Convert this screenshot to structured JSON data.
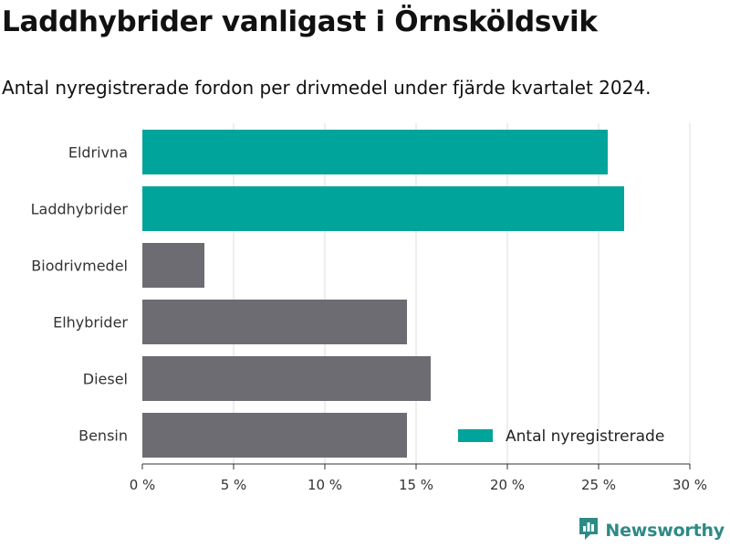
{
  "header": {
    "title": "Laddhybrider vanligast i Örnsköldsvik",
    "subtitle": "Antal nyregistrerade fordon per drivmedel under fjärde kvartalet 2024."
  },
  "colors": {
    "highlight": "#00a49a",
    "default": "#6d6c72",
    "legend": "#00a49a",
    "brand": "#2e8a86"
  },
  "chart_data": {
    "type": "bar",
    "orientation": "horizontal",
    "title": "Laddhybrider vanligast i Örnsköldsvik",
    "subtitle": "Antal nyregistrerade fordon per drivmedel under fjärde kvartalet 2024.",
    "categories": [
      "Eldrivna",
      "Laddhybrider",
      "Biodrivmedel",
      "Elhybrider",
      "Diesel",
      "Bensin"
    ],
    "values": [
      25.5,
      26.4,
      3.4,
      14.5,
      15.8,
      14.5
    ],
    "highlighted": [
      true,
      true,
      false,
      false,
      false,
      false
    ],
    "xlim": [
      0,
      30
    ],
    "xticks": [
      0,
      5,
      10,
      15,
      20,
      25,
      30
    ],
    "xtick_labels": [
      "0 %",
      "5 %",
      "10 %",
      "15 %",
      "20 %",
      "25 %",
      "30 %"
    ],
    "xlabel": "",
    "ylabel": "",
    "grid": "vertical",
    "legend": {
      "label": "Antal nyregistrerade",
      "position": "bottom-right"
    }
  },
  "branding": {
    "name": "Newsworthy",
    "logo_icon": "bar-chart-logo-icon"
  }
}
